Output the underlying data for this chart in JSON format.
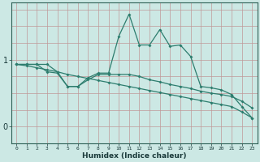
{
  "xlabel": "Humidex (Indice chaleur)",
  "x": [
    0,
    1,
    2,
    3,
    4,
    5,
    6,
    7,
    8,
    9,
    10,
    11,
    12,
    13,
    14,
    15,
    16,
    17,
    18,
    19,
    20,
    21,
    22,
    23
  ],
  "line1": [
    0.93,
    0.93,
    0.93,
    0.93,
    0.82,
    0.6,
    0.6,
    0.73,
    0.8,
    0.8,
    1.35,
    1.68,
    1.22,
    1.22,
    1.45,
    1.2,
    1.22,
    1.05,
    0.6,
    0.58,
    0.55,
    0.48,
    0.3,
    0.13
  ],
  "line2": [
    0.93,
    0.93,
    0.93,
    0.82,
    0.8,
    0.6,
    0.6,
    0.7,
    0.78,
    0.78,
    0.78,
    0.78,
    0.75,
    0.7,
    0.67,
    0.63,
    0.6,
    0.57,
    0.53,
    0.5,
    0.48,
    0.45,
    0.38,
    0.28
  ],
  "line3": [
    0.93,
    0.91,
    0.88,
    0.85,
    0.82,
    0.78,
    0.75,
    0.72,
    0.69,
    0.66,
    0.63,
    0.6,
    0.57,
    0.54,
    0.51,
    0.48,
    0.45,
    0.42,
    0.39,
    0.36,
    0.33,
    0.3,
    0.22,
    0.13
  ],
  "color": "#2d7d6e",
  "bg_color": "#cce8e4",
  "ylim": [
    -0.25,
    1.85
  ],
  "yticks": [
    0,
    1
  ],
  "xlim": [
    -0.5,
    23.5
  ],
  "figwidth": 3.2,
  "figheight": 2.0,
  "dpi": 100
}
